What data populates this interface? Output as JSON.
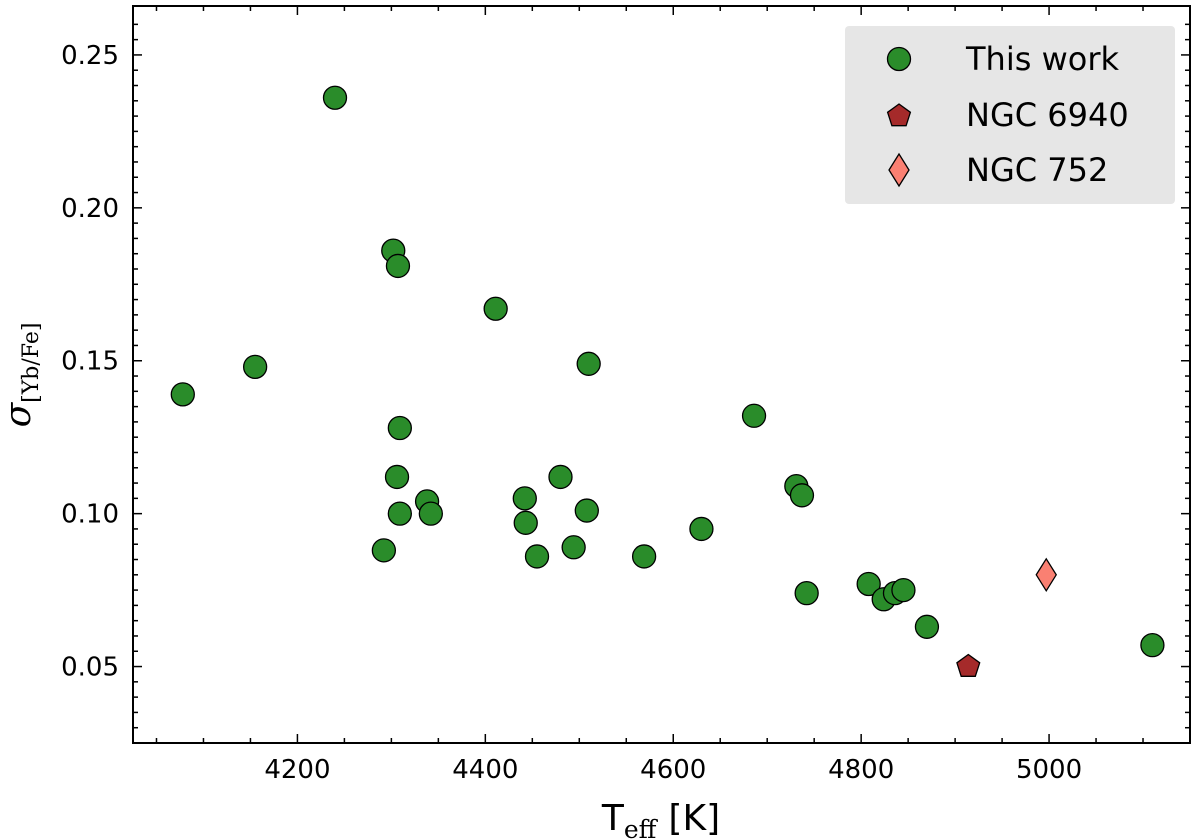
{
  "chart_data": {
    "type": "scatter",
    "xlabel": "T",
    "xlabel_sub": "eff",
    "xlabel_unit": "[K]",
    "ylabel": "σ",
    "ylabel_sub": "[Yb/Fe]",
    "xlim": [
      4025,
      5150
    ],
    "ylim": [
      0.025,
      0.266
    ],
    "xticks": [
      4200,
      4400,
      4600,
      4800,
      5000
    ],
    "yticks": [
      0.05,
      0.1,
      0.15,
      0.2,
      0.25
    ],
    "ytick_labels": [
      "0.05",
      "0.10",
      "0.15",
      "0.20",
      "0.25"
    ],
    "legend_position": "top-right",
    "grid": false,
    "series": [
      {
        "name": "This work",
        "marker": "circle",
        "color": "#2a8c2a",
        "points": [
          [
            4078,
            0.139
          ],
          [
            4155,
            0.148
          ],
          [
            4240,
            0.236
          ],
          [
            4292,
            0.088
          ],
          [
            4302,
            0.186
          ],
          [
            4306,
            0.112
          ],
          [
            4307,
            0.181
          ],
          [
            4309,
            0.1
          ],
          [
            4309,
            0.128
          ],
          [
            4338,
            0.104
          ],
          [
            4342,
            0.1
          ],
          [
            4411,
            0.167
          ],
          [
            4442,
            0.105
          ],
          [
            4443,
            0.097
          ],
          [
            4455,
            0.086
          ],
          [
            4480,
            0.112
          ],
          [
            4494,
            0.089
          ],
          [
            4508,
            0.101
          ],
          [
            4510,
            0.149
          ],
          [
            4569,
            0.086
          ],
          [
            4630,
            0.095
          ],
          [
            4686,
            0.132
          ],
          [
            4731,
            0.109
          ],
          [
            4737,
            0.106
          ],
          [
            4742,
            0.074
          ],
          [
            4808,
            0.077
          ],
          [
            4824,
            0.072
          ],
          [
            4836,
            0.074
          ],
          [
            4845,
            0.075
          ],
          [
            4870,
            0.063
          ],
          [
            5110,
            0.057
          ]
        ]
      },
      {
        "name": "NGC 6940",
        "marker": "pentagon",
        "color": "#a52a2a",
        "points": [
          [
            4914,
            0.05
          ]
        ]
      },
      {
        "name": "NGC 752",
        "marker": "diamond",
        "color": "#fa8072",
        "points": [
          [
            4997,
            0.08
          ]
        ]
      }
    ]
  }
}
